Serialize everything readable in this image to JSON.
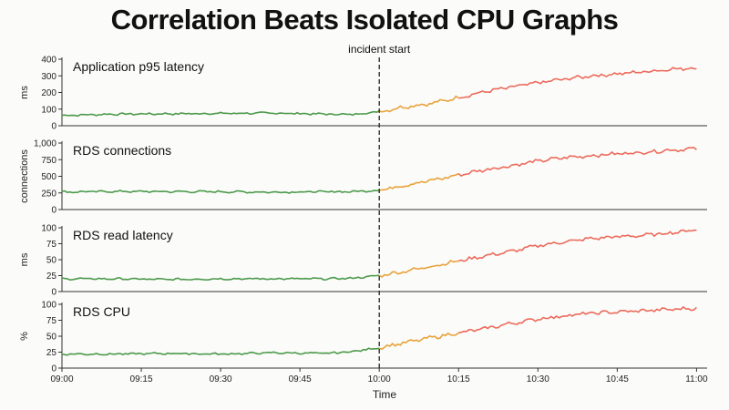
{
  "chart_data": {
    "type": "line",
    "title": "Correlation Beats Isolated CPU Graphs",
    "xlabel": "Time",
    "x_ticks": [
      "09:00",
      "09:15",
      "09:30",
      "09:45",
      "10:00",
      "10:15",
      "10:30",
      "10:45",
      "11:00"
    ],
    "x_range_minutes": [
      0,
      122
    ],
    "annotation": {
      "label": "incident start",
      "x_minute": 60
    },
    "grid": false,
    "colors": {
      "baseline": "#4c9a4c",
      "ramp": "#e8a33b",
      "incident": "#ec6b5c",
      "marker": "#222222"
    },
    "panels": [
      {
        "title": "Application p95 latency",
        "ylabel": "ms",
        "ylim": [
          0,
          400
        ],
        "yticks": [
          0,
          100,
          200,
          300,
          400
        ],
        "ytick_labels": [
          "0",
          "100",
          "200",
          "300",
          "400"
        ],
        "series": {
          "x": [
            0,
            10,
            20,
            30,
            40,
            50,
            55,
            60,
            65,
            70,
            75,
            80,
            85,
            90,
            95,
            100,
            105,
            110,
            115,
            120
          ],
          "y": [
            62,
            70,
            72,
            74,
            76,
            70,
            68,
            85,
            115,
            135,
            170,
            205,
            232,
            258,
            280,
            300,
            312,
            325,
            340,
            348
          ]
        }
      },
      {
        "title": "RDS connections",
        "ylabel": "connections",
        "ylim": [
          0,
          1000
        ],
        "yticks": [
          0,
          250,
          500,
          750,
          1000
        ],
        "ytick_labels": [
          "0",
          "250",
          "500",
          "750",
          "1,000"
        ],
        "series": {
          "x": [
            0,
            10,
            20,
            30,
            40,
            50,
            55,
            60,
            65,
            70,
            75,
            80,
            85,
            90,
            95,
            100,
            105,
            110,
            115,
            120
          ],
          "y": [
            265,
            272,
            270,
            268,
            262,
            268,
            270,
            290,
            370,
            440,
            520,
            600,
            660,
            730,
            780,
            810,
            840,
            860,
            895,
            915
          ]
        }
      },
      {
        "title": "RDS read latency",
        "ylabel": "ms",
        "ylim": [
          0,
          100
        ],
        "yticks": [
          0,
          25,
          50,
          75,
          100
        ],
        "ytick_labels": [
          "0",
          "25",
          "50",
          "75",
          "100"
        ],
        "series": {
          "x": [
            0,
            10,
            20,
            30,
            40,
            50,
            55,
            60,
            65,
            70,
            75,
            80,
            85,
            90,
            95,
            100,
            105,
            110,
            115,
            120
          ],
          "y": [
            20,
            20,
            19,
            20,
            20,
            20,
            21,
            25,
            32,
            40,
            48,
            56,
            63,
            72,
            78,
            83,
            86,
            88,
            92,
            97
          ]
        }
      },
      {
        "title": "RDS CPU",
        "ylabel": "%",
        "ylim": [
          0,
          100
        ],
        "yticks": [
          0,
          25,
          50,
          75,
          100
        ],
        "ytick_labels": [
          "0",
          "25",
          "50",
          "75",
          "100"
        ],
        "series": {
          "x": [
            0,
            10,
            20,
            30,
            40,
            50,
            55,
            60,
            65,
            70,
            75,
            80,
            85,
            90,
            95,
            100,
            105,
            110,
            115,
            120
          ],
          "y": [
            22,
            22,
            23,
            22,
            24,
            23,
            26,
            32,
            40,
            48,
            55,
            62,
            70,
            77,
            82,
            86,
            88,
            90,
            92,
            94
          ]
        }
      }
    ]
  }
}
